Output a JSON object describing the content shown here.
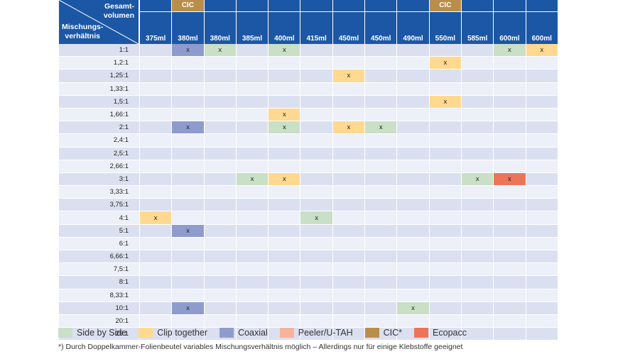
{
  "header": {
    "corner_top": "Gesamt-\nvolumen",
    "corner_bottom": "Mischungs-\nverhältnis",
    "columns": [
      {
        "volume": "375ml",
        "badge": ""
      },
      {
        "volume": "380ml",
        "badge": "CIC"
      },
      {
        "volume": "380ml",
        "badge": ""
      },
      {
        "volume": "385ml",
        "badge": ""
      },
      {
        "volume": "400ml",
        "badge": ""
      },
      {
        "volume": "415ml",
        "badge": ""
      },
      {
        "volume": "450ml",
        "badge": ""
      },
      {
        "volume": "450ml",
        "badge": ""
      },
      {
        "volume": "490ml",
        "badge": ""
      },
      {
        "volume": "550ml",
        "badge": "CIC"
      },
      {
        "volume": "585ml",
        "badge": ""
      },
      {
        "volume": "600ml",
        "badge": ""
      },
      {
        "volume": "600ml",
        "badge": ""
      }
    ]
  },
  "rows": [
    {
      "ratio": "1:1",
      "cells": [
        "",
        "coax",
        "side",
        "",
        "side",
        "",
        "",
        "",
        "",
        "",
        "",
        "side",
        "clip"
      ]
    },
    {
      "ratio": "1,2:1",
      "cells": [
        "",
        "",
        "",
        "",
        "",
        "",
        "",
        "",
        "",
        "clip",
        "",
        "",
        ""
      ]
    },
    {
      "ratio": "1,25:1",
      "cells": [
        "",
        "",
        "",
        "",
        "",
        "",
        "clip",
        "",
        "",
        "",
        "",
        "",
        ""
      ]
    },
    {
      "ratio": "1,33:1",
      "cells": [
        "",
        "",
        "",
        "",
        "",
        "",
        "",
        "",
        "",
        "",
        "",
        "",
        ""
      ]
    },
    {
      "ratio": "1,5:1",
      "cells": [
        "",
        "",
        "",
        "",
        "",
        "",
        "",
        "",
        "",
        "clip",
        "",
        "",
        ""
      ]
    },
    {
      "ratio": "1,66:1",
      "cells": [
        "",
        "",
        "",
        "",
        "clip",
        "",
        "",
        "",
        "",
        "",
        "",
        "",
        ""
      ]
    },
    {
      "ratio": "2:1",
      "cells": [
        "",
        "coax",
        "",
        "",
        "side",
        "",
        "clip",
        "side",
        "",
        "",
        "",
        "",
        ""
      ]
    },
    {
      "ratio": "2,4:1",
      "cells": [
        "",
        "",
        "",
        "",
        "",
        "",
        "",
        "",
        "",
        "",
        "",
        "",
        ""
      ]
    },
    {
      "ratio": "2,5:1",
      "cells": [
        "",
        "",
        "",
        "",
        "",
        "",
        "",
        "",
        "",
        "",
        "",
        "",
        ""
      ]
    },
    {
      "ratio": "2,66:1",
      "cells": [
        "",
        "",
        "",
        "",
        "",
        "",
        "",
        "",
        "",
        "",
        "",
        "",
        ""
      ]
    },
    {
      "ratio": "3:1",
      "cells": [
        "",
        "",
        "",
        "side",
        "clip",
        "",
        "",
        "",
        "",
        "",
        "side",
        "eco",
        ""
      ]
    },
    {
      "ratio": "3,33:1",
      "cells": [
        "",
        "",
        "",
        "",
        "",
        "",
        "",
        "",
        "",
        "",
        "",
        "",
        ""
      ]
    },
    {
      "ratio": "3,75:1",
      "cells": [
        "",
        "",
        "",
        "",
        "",
        "",
        "",
        "",
        "",
        "",
        "",
        "",
        ""
      ]
    },
    {
      "ratio": "4:1",
      "cells": [
        "clip",
        "",
        "",
        "",
        "",
        "side",
        "",
        "",
        "",
        "",
        "",
        "",
        ""
      ]
    },
    {
      "ratio": "5:1",
      "cells": [
        "",
        "coax",
        "",
        "",
        "",
        "",
        "",
        "",
        "",
        "",
        "",
        "",
        ""
      ]
    },
    {
      "ratio": "6:1",
      "cells": [
        "",
        "",
        "",
        "",
        "",
        "",
        "",
        "",
        "",
        "",
        "",
        "",
        ""
      ]
    },
    {
      "ratio": "6,66:1",
      "cells": [
        "",
        "",
        "",
        "",
        "",
        "",
        "",
        "",
        "",
        "",
        "",
        "",
        ""
      ]
    },
    {
      "ratio": "7,5:1",
      "cells": [
        "",
        "",
        "",
        "",
        "",
        "",
        "",
        "",
        "",
        "",
        "",
        "",
        ""
      ]
    },
    {
      "ratio": "8:1",
      "cells": [
        "",
        "",
        "",
        "",
        "",
        "",
        "",
        "",
        "",
        "",
        "",
        "",
        ""
      ]
    },
    {
      "ratio": "8,33:1",
      "cells": [
        "",
        "",
        "",
        "",
        "",
        "",
        "",
        "",
        "",
        "",
        "",
        "",
        ""
      ]
    },
    {
      "ratio": "10:1",
      "cells": [
        "",
        "coax",
        "",
        "",
        "",
        "",
        "",
        "",
        "side",
        "",
        "",
        "",
        ""
      ]
    },
    {
      "ratio": "20:1",
      "cells": [
        "",
        "",
        "",
        "",
        "",
        "",
        "",
        "",
        "",
        "",
        "",
        "",
        ""
      ]
    },
    {
      "ratio": "25:1",
      "cells": [
        "",
        "",
        "",
        "",
        "",
        "",
        "",
        "",
        "",
        "",
        "",
        "",
        ""
      ]
    }
  ],
  "mark": "x",
  "legend": [
    {
      "key": "side",
      "label": "Side by Side",
      "color": "#c9dfc6"
    },
    {
      "key": "clip",
      "label": "Clip together",
      "color": "#ffd990"
    },
    {
      "key": "coax",
      "label": "Coaxial",
      "color": "#8e9ccd"
    },
    {
      "key": "peel",
      "label": "Peeler/U-TAH",
      "color": "#f7b39b"
    },
    {
      "key": "cic",
      "label": "CIC*",
      "color": "#b98e4b"
    },
    {
      "key": "eco",
      "label": "Ecopacc",
      "color": "#ec7459"
    }
  ],
  "footnote": "*) Durch Doppelkammer-Folienbeutel variables Mischungsverhältnis möglich – Allerdings nur für einige Klebstoffe geeignet"
}
